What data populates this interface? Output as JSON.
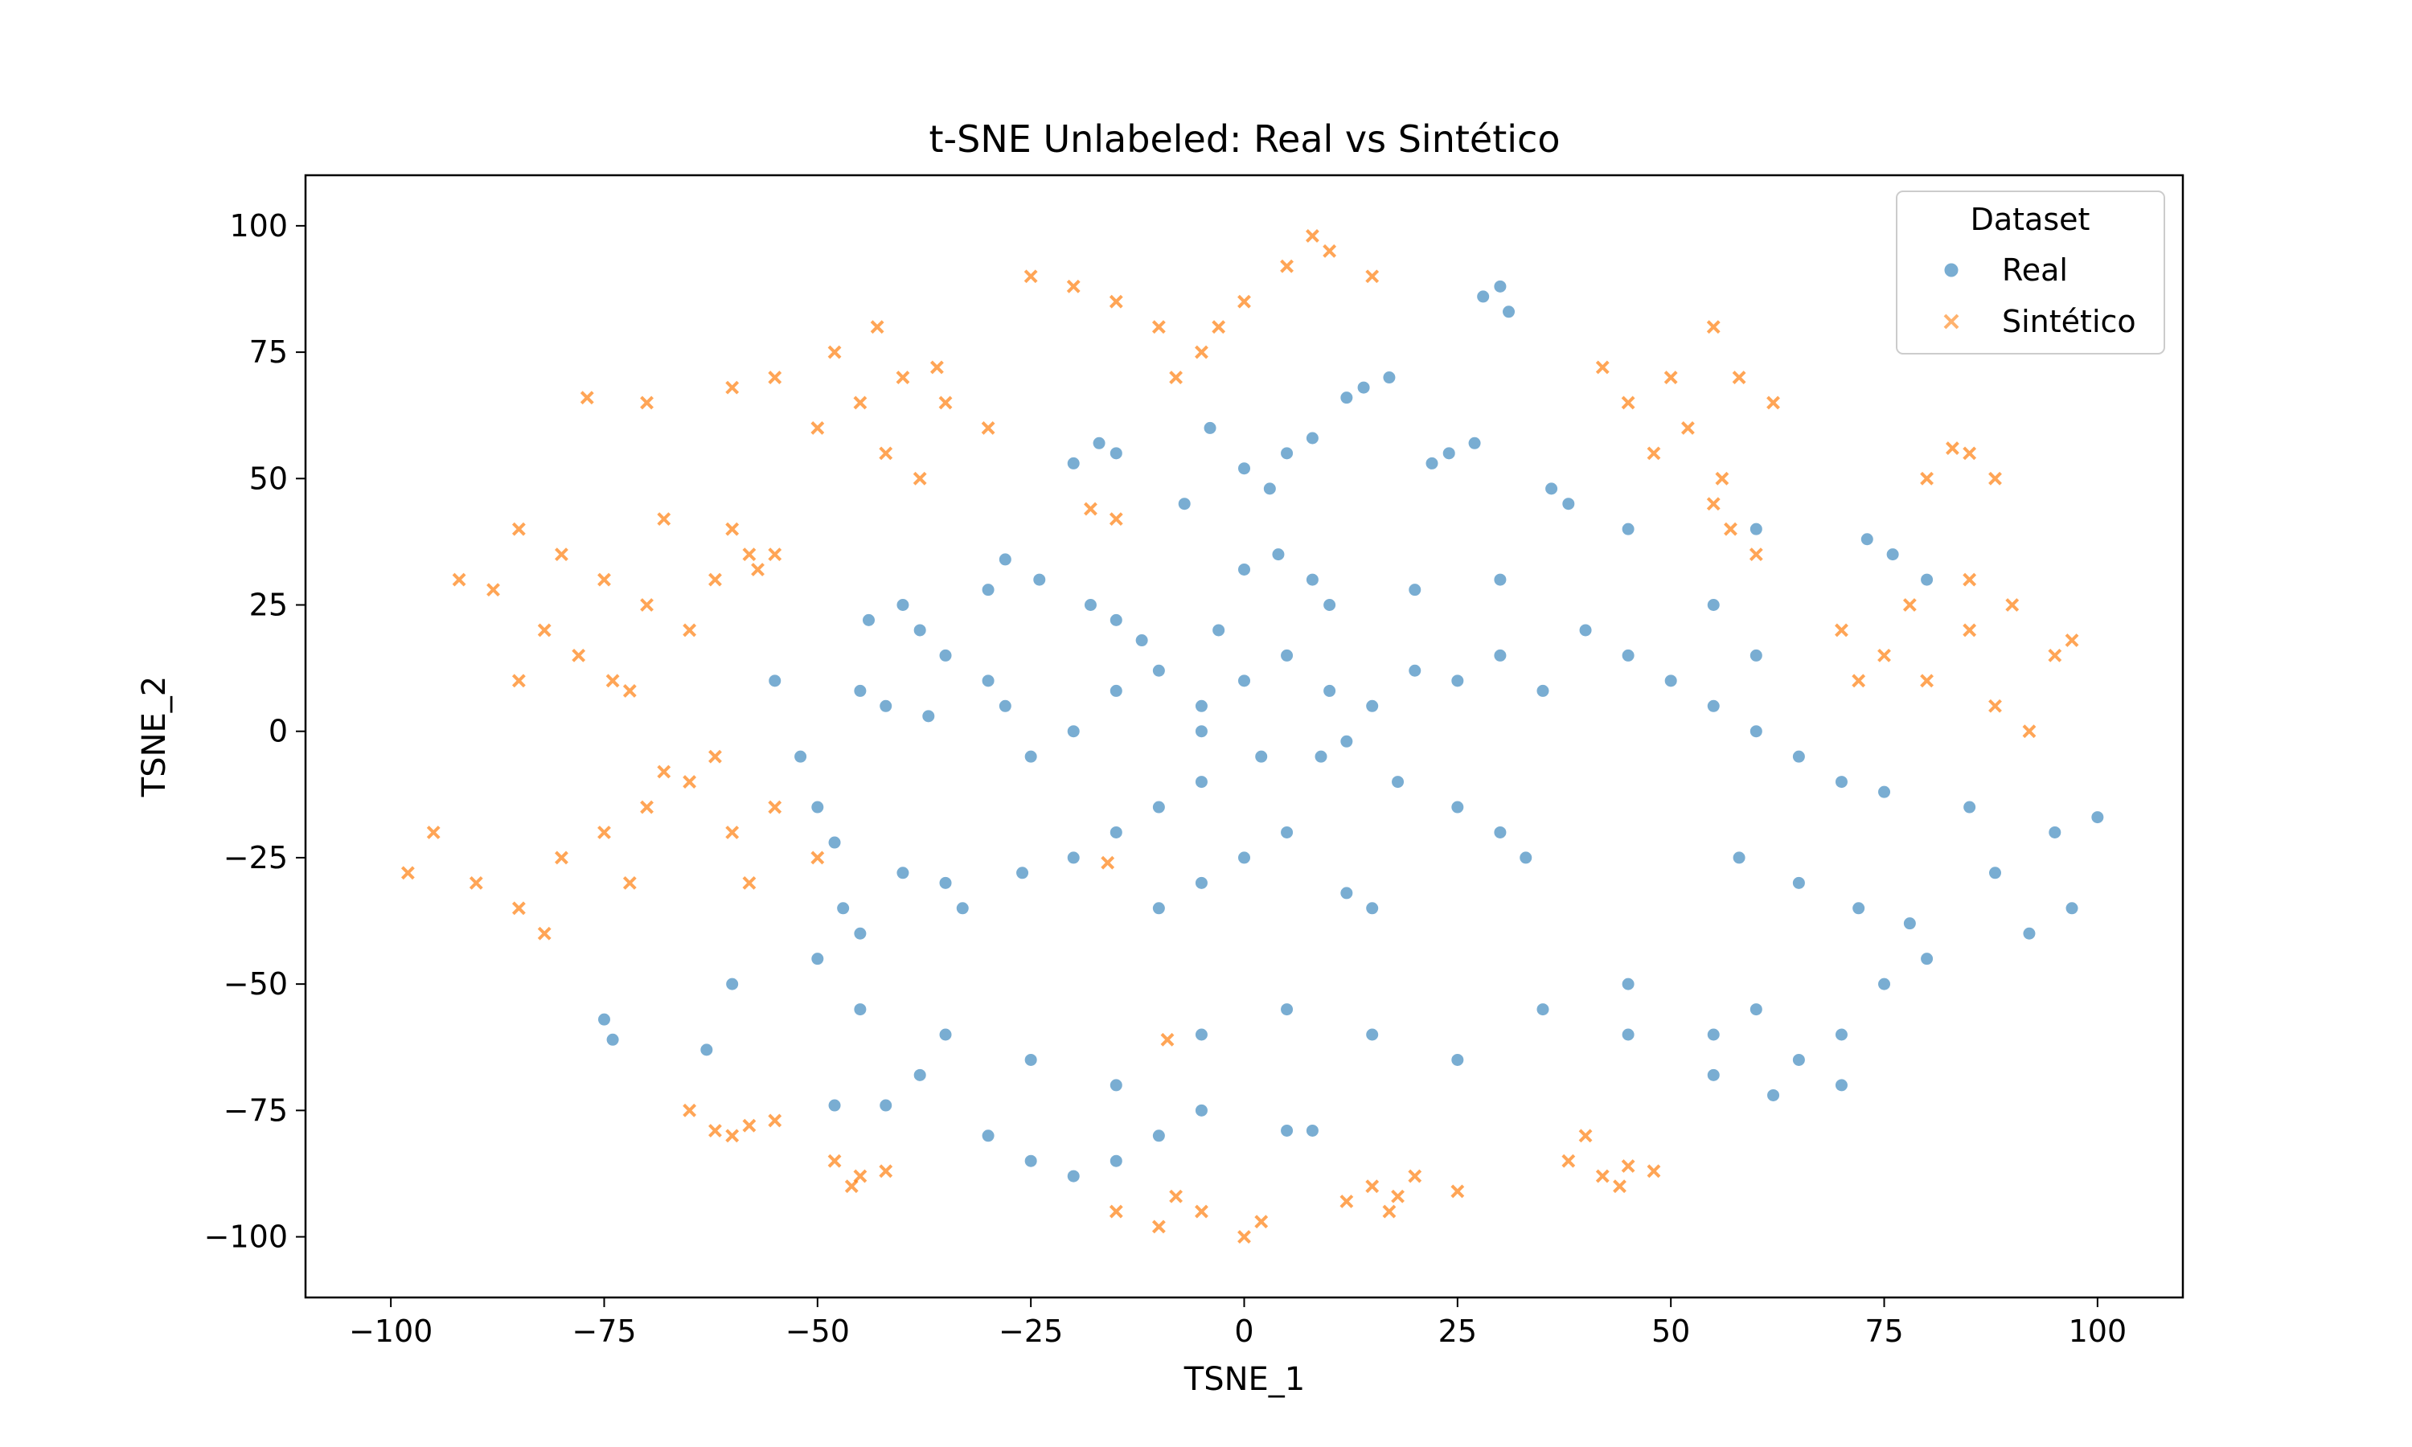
{
  "chart_data": {
    "type": "scatter",
    "title": "t-SNE Unlabeled: Real vs Sintético",
    "xlabel": "TSNE_1",
    "ylabel": "TSNE_2",
    "xlim": [
      -110,
      110
    ],
    "ylim": [
      -112,
      110
    ],
    "xticks": [
      -100,
      -75,
      -50,
      -25,
      0,
      25,
      50,
      75,
      100
    ],
    "yticks": [
      -100,
      -75,
      -50,
      -25,
      0,
      25,
      50,
      75,
      100
    ],
    "grid": false,
    "legend": {
      "title": "Dataset",
      "placement": "top-right",
      "entries": [
        "Real",
        "Sintético"
      ]
    },
    "colors": {
      "Real": "#1f77b4",
      "Sintético": "#ff7f0e"
    },
    "series": [
      {
        "name": "Real",
        "marker": "circle",
        "points": [
          [
            -40,
            25
          ],
          [
            -44,
            22
          ],
          [
            -38,
            20
          ],
          [
            -42,
            5
          ],
          [
            -37,
            3
          ],
          [
            -45,
            8
          ],
          [
            -28,
            34
          ],
          [
            -24,
            30
          ],
          [
            -30,
            28
          ],
          [
            -15,
            22
          ],
          [
            -12,
            18
          ],
          [
            -18,
            25
          ],
          [
            4,
            35
          ],
          [
            8,
            30
          ],
          [
            0,
            32
          ],
          [
            -25,
            -5
          ],
          [
            -20,
            0
          ],
          [
            -28,
            5
          ],
          [
            -15,
            8
          ],
          [
            -10,
            12
          ],
          [
            -5,
            5
          ],
          [
            0,
            10
          ],
          [
            5,
            15
          ],
          [
            10,
            8
          ],
          [
            15,
            5
          ],
          [
            20,
            12
          ],
          [
            25,
            10
          ],
          [
            30,
            15
          ],
          [
            35,
            8
          ],
          [
            40,
            20
          ],
          [
            45,
            15
          ],
          [
            50,
            10
          ],
          [
            55,
            5
          ],
          [
            60,
            0
          ],
          [
            65,
            -5
          ],
          [
            70,
            -10
          ],
          [
            75,
            -12
          ],
          [
            85,
            -15
          ],
          [
            95,
            -20
          ],
          [
            100,
            -17
          ],
          [
            9,
            -5
          ],
          [
            12,
            -2
          ],
          [
            18,
            -10
          ],
          [
            25,
            -15
          ],
          [
            30,
            -20
          ],
          [
            33,
            -25
          ],
          [
            -5,
            -10
          ],
          [
            -10,
            -15
          ],
          [
            -15,
            -20
          ],
          [
            -20,
            -25
          ],
          [
            -26,
            -28
          ],
          [
            -35,
            -30
          ],
          [
            -40,
            -28
          ],
          [
            -33,
            -35
          ],
          [
            -10,
            -35
          ],
          [
            -5,
            -30
          ],
          [
            0,
            -25
          ],
          [
            5,
            -20
          ],
          [
            12,
            -32
          ],
          [
            15,
            -35
          ],
          [
            -50,
            -45
          ],
          [
            -60,
            -50
          ],
          [
            -45,
            -55
          ],
          [
            -35,
            -60
          ],
          [
            -25,
            -65
          ],
          [
            -15,
            -70
          ],
          [
            -5,
            -60
          ],
          [
            5,
            -55
          ],
          [
            15,
            -60
          ],
          [
            25,
            -65
          ],
          [
            35,
            -55
          ],
          [
            45,
            -50
          ],
          [
            55,
            -60
          ],
          [
            60,
            -55
          ],
          [
            65,
            -65
          ],
          [
            70,
            -60
          ],
          [
            75,
            -50
          ],
          [
            80,
            -45
          ],
          [
            -30,
            -80
          ],
          [
            -25,
            -85
          ],
          [
            -20,
            -88
          ],
          [
            -15,
            -85
          ],
          [
            -10,
            -80
          ],
          [
            -5,
            -75
          ],
          [
            5,
            -79
          ],
          [
            8,
            -79
          ],
          [
            -75,
            -57
          ],
          [
            -74,
            -61
          ],
          [
            -63,
            -63
          ],
          [
            -48,
            -74
          ],
          [
            -42,
            -74
          ],
          [
            -38,
            -68
          ],
          [
            70,
            -70
          ],
          [
            62,
            -72
          ],
          [
            55,
            -68
          ],
          [
            45,
            -60
          ],
          [
            5,
            55
          ],
          [
            8,
            58
          ],
          [
            0,
            52
          ],
          [
            -15,
            55
          ],
          [
            -20,
            53
          ],
          [
            -17,
            57
          ],
          [
            14,
            68
          ],
          [
            17,
            70
          ],
          [
            12,
            66
          ],
          [
            24,
            55
          ],
          [
            27,
            57
          ],
          [
            22,
            53
          ],
          [
            28,
            86
          ],
          [
            31,
            83
          ],
          [
            30,
            88
          ],
          [
            -4,
            60
          ],
          [
            3,
            48
          ],
          [
            -7,
            45
          ],
          [
            -55,
            10
          ],
          [
            -52,
            -5
          ],
          [
            -50,
            -15
          ],
          [
            -48,
            -22
          ],
          [
            -47,
            -35
          ],
          [
            -45,
            -40
          ],
          [
            55,
            25
          ],
          [
            60,
            15
          ],
          [
            58,
            -25
          ],
          [
            65,
            -30
          ],
          [
            72,
            -35
          ],
          [
            78,
            -38
          ],
          [
            88,
            -28
          ],
          [
            92,
            -40
          ],
          [
            97,
            -35
          ],
          [
            73,
            38
          ],
          [
            76,
            35
          ],
          [
            80,
            30
          ],
          [
            60,
            40
          ],
          [
            45,
            40
          ],
          [
            38,
            45
          ],
          [
            36,
            48
          ],
          [
            -5,
            0
          ],
          [
            2,
            -5
          ],
          [
            -3,
            20
          ],
          [
            10,
            25
          ],
          [
            20,
            28
          ],
          [
            30,
            30
          ],
          [
            -35,
            15
          ],
          [
            -30,
            10
          ]
        ]
      },
      {
        "name": "Sintético",
        "marker": "x",
        "points": [
          [
            -85,
            40
          ],
          [
            -80,
            35
          ],
          [
            -75,
            30
          ],
          [
            -70,
            25
          ],
          [
            -78,
            15
          ],
          [
            -82,
            20
          ],
          [
            -88,
            28
          ],
          [
            -74,
            10
          ],
          [
            -65,
            20
          ],
          [
            -62,
            30
          ],
          [
            -60,
            40
          ],
          [
            -68,
            42
          ],
          [
            -92,
            30
          ],
          [
            -85,
            10
          ],
          [
            -72,
            8
          ],
          [
            -58,
            35
          ],
          [
            -95,
            -20
          ],
          [
            -90,
            -30
          ],
          [
            -85,
            -35
          ],
          [
            -80,
            -25
          ],
          [
            -75,
            -20
          ],
          [
            -70,
            -15
          ],
          [
            -65,
            -10
          ],
          [
            -60,
            -20
          ],
          [
            -55,
            -15
          ],
          [
            -50,
            -25
          ],
          [
            -58,
            -30
          ],
          [
            -62,
            -5
          ],
          [
            -72,
            -30
          ],
          [
            -82,
            -40
          ],
          [
            -98,
            -28
          ],
          [
            -68,
            -8
          ],
          [
            -40,
            70
          ],
          [
            -35,
            65
          ],
          [
            -30,
            60
          ],
          [
            -45,
            65
          ],
          [
            -42,
            55
          ],
          [
            -38,
            50
          ],
          [
            -48,
            75
          ],
          [
            -43,
            80
          ],
          [
            -55,
            70
          ],
          [
            -60,
            68
          ],
          [
            -70,
            65
          ],
          [
            -77,
            66
          ],
          [
            -50,
            60
          ],
          [
            -36,
            72
          ],
          [
            -25,
            90
          ],
          [
            -20,
            88
          ],
          [
            -15,
            85
          ],
          [
            -10,
            80
          ],
          [
            -5,
            75
          ],
          [
            0,
            85
          ],
          [
            5,
            92
          ],
          [
            10,
            95
          ],
          [
            15,
            90
          ],
          [
            8,
            98
          ],
          [
            -8,
            70
          ],
          [
            -3,
            80
          ],
          [
            45,
            65
          ],
          [
            50,
            70
          ],
          [
            55,
            80
          ],
          [
            52,
            60
          ],
          [
            48,
            55
          ],
          [
            58,
            70
          ],
          [
            62,
            65
          ],
          [
            55,
            45
          ],
          [
            60,
            35
          ],
          [
            57,
            40
          ],
          [
            42,
            72
          ],
          [
            56,
            50
          ],
          [
            80,
            50
          ],
          [
            85,
            55
          ],
          [
            88,
            50
          ],
          [
            83,
            56
          ],
          [
            70,
            20
          ],
          [
            75,
            15
          ],
          [
            80,
            10
          ],
          [
            85,
            20
          ],
          [
            90,
            25
          ],
          [
            95,
            15
          ],
          [
            88,
            5
          ],
          [
            92,
            0
          ],
          [
            78,
            25
          ],
          [
            72,
            10
          ],
          [
            85,
            30
          ],
          [
            97,
            18
          ],
          [
            -55,
            35
          ],
          [
            -57,
            32
          ],
          [
            -15,
            42
          ],
          [
            -18,
            44
          ],
          [
            -16,
            -26
          ],
          [
            -9,
            -61
          ],
          [
            -65,
            -75
          ],
          [
            -60,
            -80
          ],
          [
            -58,
            -78
          ],
          [
            -55,
            -77
          ],
          [
            -62,
            -79
          ],
          [
            -48,
            -85
          ],
          [
            -45,
            -88
          ],
          [
            -42,
            -87
          ],
          [
            -46,
            -90
          ],
          [
            -15,
            -95
          ],
          [
            -10,
            -98
          ],
          [
            -5,
            -95
          ],
          [
            0,
            -100
          ],
          [
            2,
            -97
          ],
          [
            -8,
            -92
          ],
          [
            12,
            -93
          ],
          [
            15,
            -90
          ],
          [
            18,
            -92
          ],
          [
            20,
            -88
          ],
          [
            25,
            -91
          ],
          [
            17,
            -95
          ],
          [
            38,
            -85
          ],
          [
            42,
            -88
          ],
          [
            45,
            -86
          ],
          [
            48,
            -87
          ],
          [
            40,
            -80
          ],
          [
            44,
            -90
          ]
        ]
      }
    ]
  }
}
